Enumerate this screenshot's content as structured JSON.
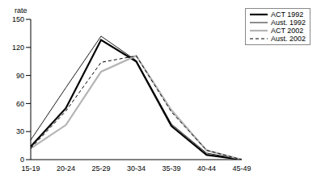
{
  "chart_data": {
    "type": "line",
    "y_label": "rate",
    "categories": [
      "15-19",
      "20-24",
      "25-29",
      "30-34",
      "35-39",
      "40-44",
      "45-49"
    ],
    "series": [
      {
        "name": "ACT 1992",
        "color": "#000000",
        "line_style": "solid",
        "values": [
          14,
          55,
          128,
          105,
          36,
          5,
          0
        ]
      },
      {
        "name": "Aust. 1992",
        "color": "#000000",
        "line_style": "solid",
        "values": [
          21,
          77,
          132,
          106,
          38,
          7,
          0
        ]
      },
      {
        "name": "ACT 2002",
        "color": "#b4b4b4",
        "line_style": "solid",
        "values": [
          12,
          37,
          94,
          111,
          53,
          10,
          0
        ]
      },
      {
        "name": "Aust. 2002",
        "color": "#000000",
        "line_style": "dashed",
        "values": [
          12,
          52,
          104,
          111,
          51,
          10,
          0
        ]
      }
    ],
    "ylim": [
      0,
      150
    ],
    "yticks": [
      0,
      30,
      60,
      90,
      120,
      150
    ],
    "grid": false,
    "legend": "top-right"
  }
}
